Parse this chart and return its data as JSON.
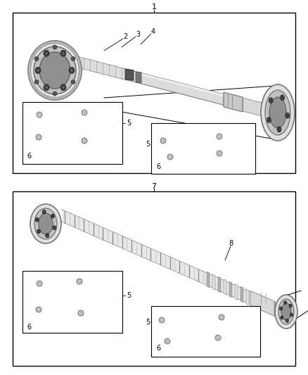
{
  "fig_width": 4.38,
  "fig_height": 5.33,
  "dpi": 100,
  "bg_color": "#ffffff"
}
